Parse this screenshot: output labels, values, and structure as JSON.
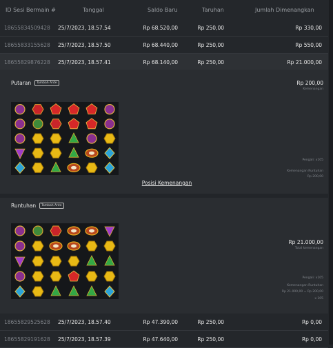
{
  "header": {
    "columns": [
      "ID Sesi Bermain #",
      "Tanggal",
      "Saldo Baru",
      "Taruhan",
      "Jumlah Dimenangkan"
    ]
  },
  "rows_top": [
    [
      "18655834509428",
      "25/7/2023, 18.57.54",
      "Rp 68.520,00",
      "Rp 250,00",
      "Rp 330,00"
    ],
    [
      "18655833155628",
      "25/7/2023, 18.57.50",
      "Rp 68.440,00",
      "Rp 250,00",
      "Rp 550,00"
    ],
    [
      "18655829876228",
      "25/7/2023, 18.57.41",
      "Rp 68.140,00",
      "Rp 250,00",
      "Rp 21.000,00"
    ]
  ],
  "detail": {
    "spin": {
      "label": "Putaran",
      "badge": "Tambah Ante",
      "amount": "Rp 200,00",
      "amount_label": "Kemenangan",
      "multiplier": "Pengali: x105",
      "cascade_label": "Kemenangan Runtuhan",
      "cascade_value": "Rp 200,00"
    },
    "link": "Posisi Kemenangan",
    "tumble": {
      "label": "Runtuhan",
      "badge": "Tambah Ante",
      "amount": "Rp 21.000,00",
      "amount_label": "Total kemenangan",
      "multiplier": "Pengali: x105",
      "cascade_label": "Kemenangan Runtuhan",
      "cascade_formula": "Rp 21.000,00 = Rp 200,00",
      "cascade_factor": "x 105"
    }
  },
  "rows_bottom": [
    [
      "18655829525628",
      "25/7/2023, 18.57.40",
      "Rp 47.390,00",
      "Rp 250,00",
      "Rp 0,00"
    ],
    [
      "18655829191628",
      "25/7/2023, 18.57.39",
      "Rp 47.640,00",
      "Rp 250,00",
      "Rp 0,00"
    ]
  ]
}
